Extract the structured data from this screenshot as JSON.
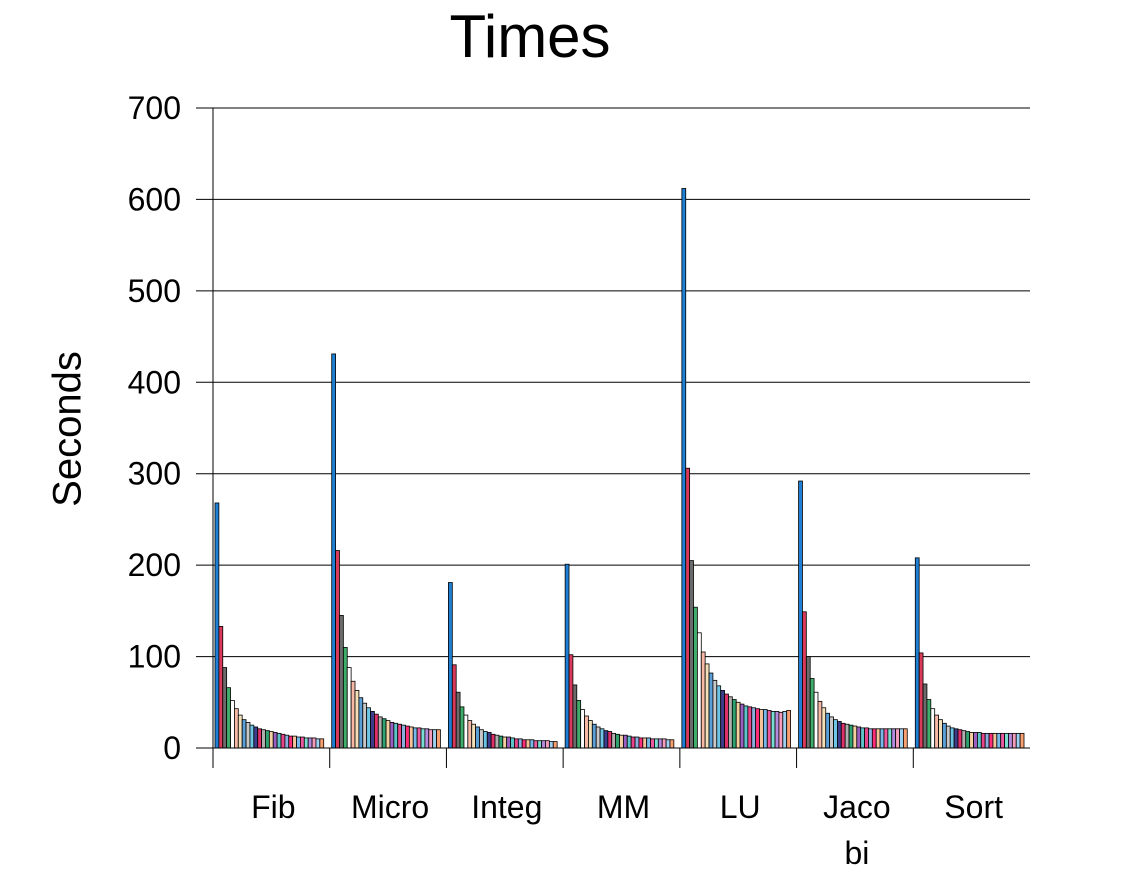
{
  "chart_data": {
    "type": "bar",
    "title": "Times",
    "xlabel": "",
    "ylabel": "Seconds",
    "ylim": [
      0,
      700
    ],
    "yticks": [
      0,
      100,
      200,
      300,
      400,
      500,
      600,
      700
    ],
    "grid": true,
    "categories": [
      "Fib",
      "Micro",
      "Integ",
      "MM",
      "LU",
      "Jaco bi",
      "Sort"
    ],
    "category_label_lines": [
      [
        "Fib"
      ],
      [
        "Micro"
      ],
      [
        "Integ"
      ],
      [
        "MM"
      ],
      [
        "LU"
      ],
      [
        "Jaco",
        "bi"
      ],
      [
        "Sort"
      ]
    ],
    "palette": [
      "#1f7fd4",
      "#d93a5a",
      "#6b6b6b",
      "#3fae6a",
      "#ffffff",
      "#f7b9a6",
      "#f3e0b8",
      "#5a9fd8",
      "#c8c8c8",
      "#6ec6e6",
      "#3d3d8c",
      "#e0306a",
      "#b0b0b0",
      "#2ea36f",
      "#f5d0a0",
      "#9a5fc0",
      "#5dc4c9",
      "#e8458b",
      "#8ab0e0",
      "#ff2d7a",
      "#f6c49a",
      "#76b9ea",
      "#ee5aa0",
      "#7adfd0",
      "#b58adf",
      "#f59dbd",
      "#9ed0f0",
      "#f9a070"
    ],
    "series_values": [
      [
        268,
        133,
        88,
        66,
        52,
        43,
        36,
        31,
        28,
        25,
        23,
        21,
        20,
        19,
        18,
        17,
        16,
        15,
        14,
        13,
        13,
        12,
        12,
        11,
        11,
        11,
        10,
        10
      ],
      [
        431,
        216,
        145,
        110,
        88,
        73,
        63,
        55,
        49,
        44,
        40,
        37,
        34,
        32,
        30,
        28,
        27,
        26,
        25,
        24,
        23,
        22,
        22,
        21,
        21,
        20,
        20,
        20
      ],
      [
        181,
        91,
        61,
        45,
        36,
        30,
        26,
        23,
        20,
        18,
        17,
        15,
        14,
        13,
        12,
        12,
        11,
        10,
        10,
        9,
        9,
        9,
        8,
        8,
        8,
        8,
        7,
        7
      ],
      [
        201,
        102,
        69,
        52,
        42,
        35,
        30,
        26,
        23,
        21,
        19,
        18,
        16,
        15,
        14,
        14,
        13,
        12,
        12,
        11,
        11,
        11,
        10,
        10,
        10,
        10,
        9,
        9
      ],
      [
        612,
        306,
        205,
        154,
        126,
        105,
        92,
        82,
        74,
        68,
        63,
        59,
        56,
        53,
        50,
        48,
        46,
        45,
        44,
        43,
        42,
        42,
        41,
        40,
        40,
        39,
        40,
        41
      ],
      [
        292,
        149,
        100,
        76,
        61,
        51,
        44,
        38,
        34,
        31,
        29,
        27,
        26,
        25,
        24,
        23,
        22,
        22,
        21,
        21,
        21,
        21,
        21,
        21,
        21,
        21,
        21,
        21
      ],
      [
        208,
        104,
        70,
        53,
        43,
        36,
        31,
        27,
        24,
        22,
        21,
        20,
        19,
        18,
        17,
        17,
        17,
        16,
        16,
        16,
        16,
        16,
        16,
        16,
        16,
        16,
        16,
        16
      ]
    ]
  }
}
